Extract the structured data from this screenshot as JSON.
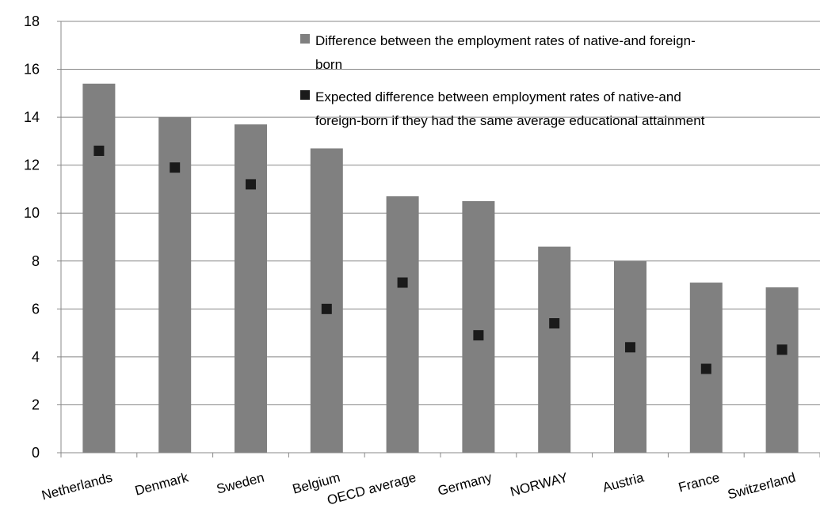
{
  "chart_data": {
    "type": "bar",
    "title": "",
    "xlabel": "",
    "ylabel": "",
    "ylim": [
      0,
      18
    ],
    "yticks": [
      "0",
      "2",
      "4",
      "6",
      "8",
      "10",
      "12",
      "14",
      "16",
      "18"
    ],
    "categories": [
      "Netherlands",
      "Denmark",
      "Sweden",
      "Belgium",
      "OECD average",
      "Germany",
      "NORWAY",
      "Austria",
      "France",
      "Switzerland"
    ],
    "series": [
      {
        "name": "Difference between the employment rates of native-and foreign-born",
        "mark": "bar",
        "color": "#808080",
        "values": [
          15.4,
          14.0,
          13.7,
          12.7,
          10.7,
          10.5,
          8.6,
          8.0,
          7.1,
          6.9
        ]
      },
      {
        "name": "Expected difference between employment rates of native-and foreign-born if they had the same average educational attainment",
        "mark": "square",
        "color": "#1a1a1a",
        "values": [
          12.6,
          11.9,
          11.2,
          6.0,
          7.1,
          4.9,
          5.4,
          4.4,
          3.5,
          4.3
        ]
      }
    ],
    "legend": {
      "position": "top-right",
      "entries": [
        [
          "Difference between the employment rates of native-and foreign-",
          "born"
        ],
        [
          "Expected difference between employment rates of native-and",
          "foreign-born if they had the same average educational attainment"
        ]
      ]
    },
    "grid": {
      "horizontal": true,
      "vertical": false,
      "color": "#888888"
    }
  }
}
